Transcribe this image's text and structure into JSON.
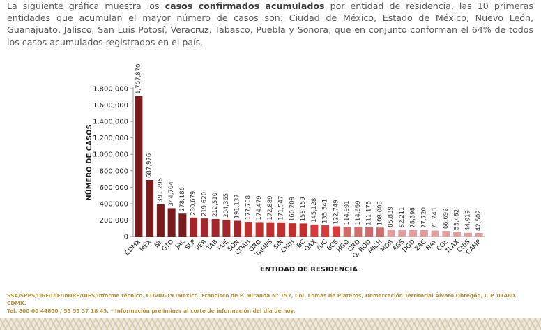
{
  "intro": {
    "part1": "La siguiente gráfica muestra los ",
    "bold": "casos confirmados acumulados",
    "part2": " por entidad de residencia, las 10 primeras entidades que acumulan el mayor número de casos son: Ciudad de México, Estado de México, Nuevo León, Guanajuato, Jalisco, San Luis Potosí, Veracruz, Tabasco, Puebla y Sonora, que en conjunto conforman el 64% de todos los casos acumulados registrados en el país."
  },
  "chart_data": {
    "type": "bar",
    "xlabel": "ENTIDAD DE RESIDENCIA",
    "ylabel": "NÚMERO DE CASOS",
    "ylim": [
      0,
      1800000
    ],
    "yticks": [
      0,
      200000,
      400000,
      600000,
      800000,
      1000000,
      1200000,
      1400000,
      1600000,
      1800000
    ],
    "ytick_labels": [
      "0",
      "200,000",
      "400,000",
      "600,000",
      "800,000",
      "1,000,000",
      "1,200,000",
      "1,400,000",
      "1,600,000",
      "1,800,000"
    ],
    "grid": false,
    "categories": [
      "CDMX",
      "MEX",
      "NL",
      "GTO",
      "JAL",
      "SLP",
      "VER",
      "TAB",
      "PUE",
      "SON",
      "COAH",
      "QRO",
      "TAMPS",
      "SIN",
      "CHIH",
      "BC",
      "OAX",
      "YUC",
      "BCS",
      "HGO",
      "GRO",
      "Q. ROO",
      "MICH",
      "MOR",
      "AGS",
      "DGO",
      "ZAC",
      "NAY",
      "COL",
      "TLAX",
      "CHIS",
      "CAMP"
    ],
    "values": [
      1707870,
      687976,
      391295,
      344704,
      278186,
      230679,
      219620,
      212510,
      204365,
      191137,
      177768,
      174479,
      172889,
      171547,
      160209,
      158159,
      145128,
      135541,
      122749,
      114991,
      114669,
      111175,
      108003,
      85839,
      82211,
      78398,
      77720,
      71243,
      66692,
      55482,
      44019,
      42502
    ],
    "value_labels": [
      "1,707,870",
      "687,976",
      "391,295",
      "344,704",
      "278,186",
      "230,679",
      "219,620",
      "212,510",
      "204,365",
      "191,137",
      "177,768",
      "174,479",
      "172,889",
      "171,547",
      "160,209",
      "158,159",
      "145,128",
      "135,541",
      "122,749",
      "114,991",
      "114,669",
      "111,175",
      "108,003",
      "85,839",
      "82,211",
      "78,398",
      "77,720",
      "71,243",
      "66,692",
      "55,482",
      "44,019",
      "42,502"
    ],
    "colors": [
      "#7b1c1c",
      "#7b1c1c",
      "#7b1c1c",
      "#7b1c1c",
      "#7b1c1c",
      "#a3272a",
      "#a3272a",
      "#a3272a",
      "#a3272a",
      "#a3272a",
      "#c12e2e",
      "#c12e2e",
      "#c12e2e",
      "#c12e2e",
      "#c12e2e",
      "#c12e2e",
      "#d63a3a",
      "#d63a3a",
      "#d63a3a",
      "#d06b6b",
      "#d06b6b",
      "#d06b6b",
      "#d06b6b",
      "#e39b9b",
      "#e39b9b",
      "#e39b9b",
      "#e39b9b",
      "#e39b9b",
      "#e39b9b",
      "#e39b9b",
      "#e39b9b",
      "#e39b9b"
    ]
  },
  "footer": {
    "line1": "SSA/SPPS/DGE/DIE/InDRE/UIES/Informe técnico. COVID-19 /México. Francisco de P. Miranda N° 157, Col. Lomas de Plateros, Demarcación Territorial Álvaro Obregón, C.P. 01480. CDMX.",
    "line2": "Tel. 800 00 44800 / 55 53 37 18 45. * Información preliminar al corte de información del día de hoy."
  }
}
